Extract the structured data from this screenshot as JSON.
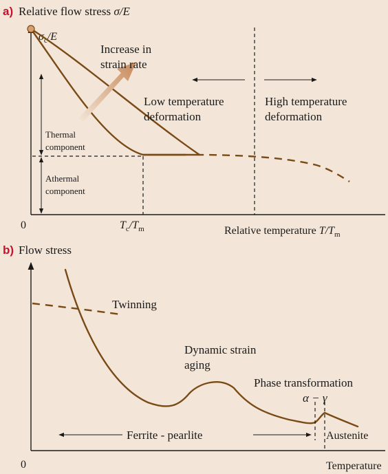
{
  "panel_a": {
    "letter": "a)",
    "title_prefix": "Relative flow stress ",
    "title_math": "σ/E",
    "y_label_main": "σ",
    "y_label_sub": "c",
    "y_label_rest": "/E",
    "arrow_label_line1": "Increase in",
    "arrow_label_line2": "strain rate",
    "low_temp_line1": "Low temperature",
    "low_temp_line2": "deformation",
    "high_temp_line1": "High temperature",
    "high_temp_line2": "deformation",
    "thermal_line1": "Thermal",
    "thermal_line2": "component",
    "athermal_line1": "Athermal",
    "athermal_line2": "component",
    "origin": "0",
    "tc_T": "T",
    "tc_sub": "c",
    "tc_slash": "/T",
    "tc_sub2": "m",
    "x_label_prefix": "Relative temperature ",
    "x_label_T": "T/T",
    "x_label_sub": "m"
  },
  "panel_b": {
    "letter": "b)",
    "title": "Flow stress",
    "twinning": "Twinning",
    "dsa_line1": "Dynamic strain",
    "dsa_line2": "aging",
    "phase_line1": "Phase transformation",
    "phase_line2": "α − γ",
    "ferrite": "Ferrite - pearlite",
    "austenite": "Austenite",
    "origin": "0",
    "x_label": "Temperature"
  },
  "colors": {
    "background": "#f3e6d8",
    "curve": "#7a4a16",
    "panel_letter": "#c8102e",
    "strain_arrow": "#d9a57a"
  }
}
